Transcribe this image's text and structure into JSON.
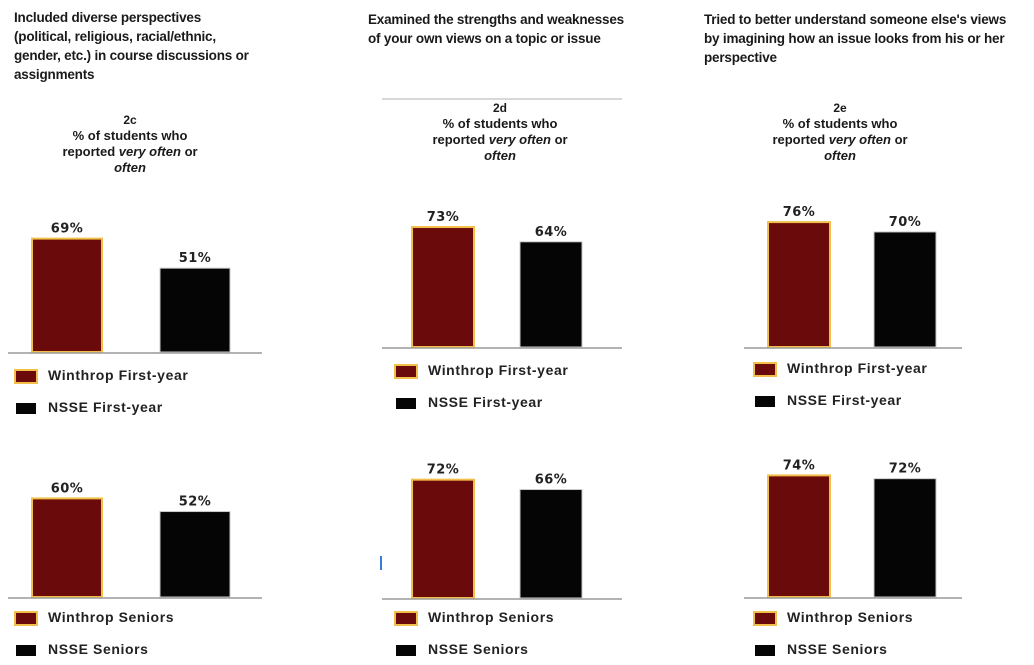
{
  "colors": {
    "winthrop": "#6b0a0a",
    "winthrop_edge": "#f2c04a",
    "nsse": "#050505"
  },
  "panels": [
    {
      "heading": "Included diverse perspectives\n(political, religious, racial/ethnic,\ngender, etc.) in course discussions or\nassignments",
      "code": "2c",
      "sub_lead": "% of students who",
      "sub_mid": "reported",
      "sub_em": "very often",
      "sub_or": "or",
      "sub_tail": "often"
    },
    {
      "heading": "Examined the strengths and weaknesses\nof your own views on a topic or issue",
      "code": "2d",
      "sub_lead": "% of students who",
      "sub_mid": "reported",
      "sub_em": "very often",
      "sub_or": "or",
      "sub_tail": "often"
    },
    {
      "heading": "Tried to better understand someone else's views\nby imagining how an issue looks from his or her\nperspective",
      "code": "2e",
      "sub_lead": "% of students who",
      "sub_mid": "reported",
      "sub_em": "very often",
      "sub_or": "or",
      "sub_tail": "often"
    }
  ],
  "legends": {
    "first_year": [
      "Winthrop First-year",
      "NSSE First-year"
    ],
    "seniors": [
      "Winthrop Seniors",
      "NSSE Seniors"
    ]
  },
  "chart_data": [
    {
      "type": "bar",
      "categories": [
        "Winthrop First-year",
        "NSSE First-year"
      ],
      "values": [
        69,
        51
      ],
      "labels": [
        "69%",
        "51%"
      ],
      "ylim": [
        0,
        100
      ]
    },
    {
      "type": "bar",
      "categories": [
        "Winthrop Seniors",
        "NSSE Seniors"
      ],
      "values": [
        60,
        52
      ],
      "labels": [
        "60%",
        "52%"
      ],
      "ylim": [
        0,
        100
      ]
    },
    {
      "type": "bar",
      "categories": [
        "Winthrop First-year",
        "NSSE First-year"
      ],
      "values": [
        73,
        64
      ],
      "labels": [
        "73%",
        "64%"
      ],
      "ylim": [
        0,
        100
      ]
    },
    {
      "type": "bar",
      "categories": [
        "Winthrop Seniors",
        "NSSE Seniors"
      ],
      "values": [
        72,
        66
      ],
      "labels": [
        "72%",
        "66%"
      ],
      "ylim": [
        0,
        100
      ]
    },
    {
      "type": "bar",
      "categories": [
        "Winthrop First-year",
        "NSSE First-year"
      ],
      "values": [
        76,
        70
      ],
      "labels": [
        "76%",
        "70%"
      ],
      "ylim": [
        0,
        100
      ]
    },
    {
      "type": "bar",
      "categories": [
        "Winthrop Seniors",
        "NSSE Seniors"
      ],
      "values": [
        74,
        72
      ],
      "labels": [
        "74%",
        "72%"
      ],
      "ylim": [
        0,
        100
      ]
    }
  ]
}
